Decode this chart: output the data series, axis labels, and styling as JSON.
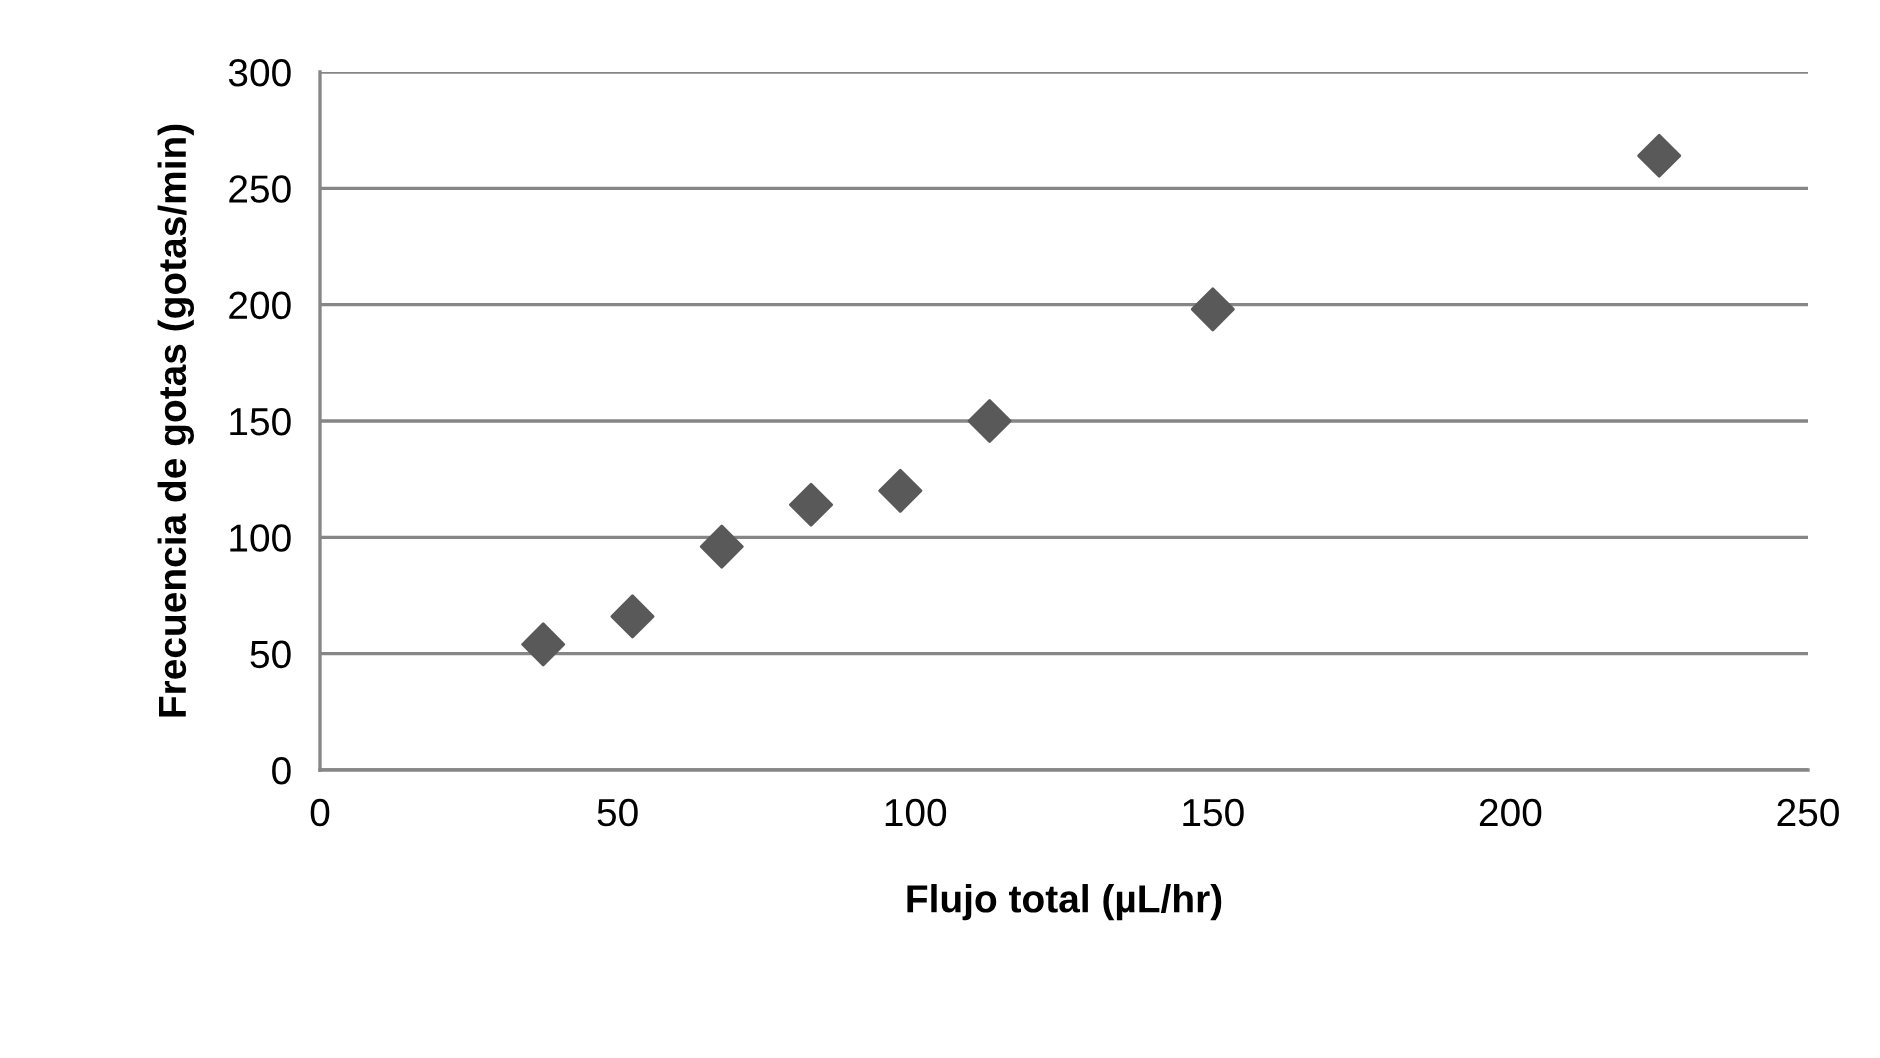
{
  "chart_data": {
    "type": "scatter",
    "xlabel": "Flujo total (µL/hr)",
    "ylabel": "Frecuencia de gotas (gotas/min)",
    "x": [
      37.5,
      52.5,
      67.5,
      82.5,
      97.5,
      112.5,
      150,
      225
    ],
    "series": [
      {
        "color": "#595959",
        "values": [
          54,
          66,
          96,
          114,
          120,
          150,
          198,
          264
        ]
      }
    ],
    "xlim": [
      0,
      250
    ],
    "xticks": [
      0,
      50,
      100,
      150,
      200,
      250
    ],
    "ylim": [
      0,
      300
    ],
    "yticks": [
      0,
      50,
      100,
      150,
      200,
      250,
      300
    ],
    "grid": "y",
    "marker": "diamond",
    "legend": false
  }
}
